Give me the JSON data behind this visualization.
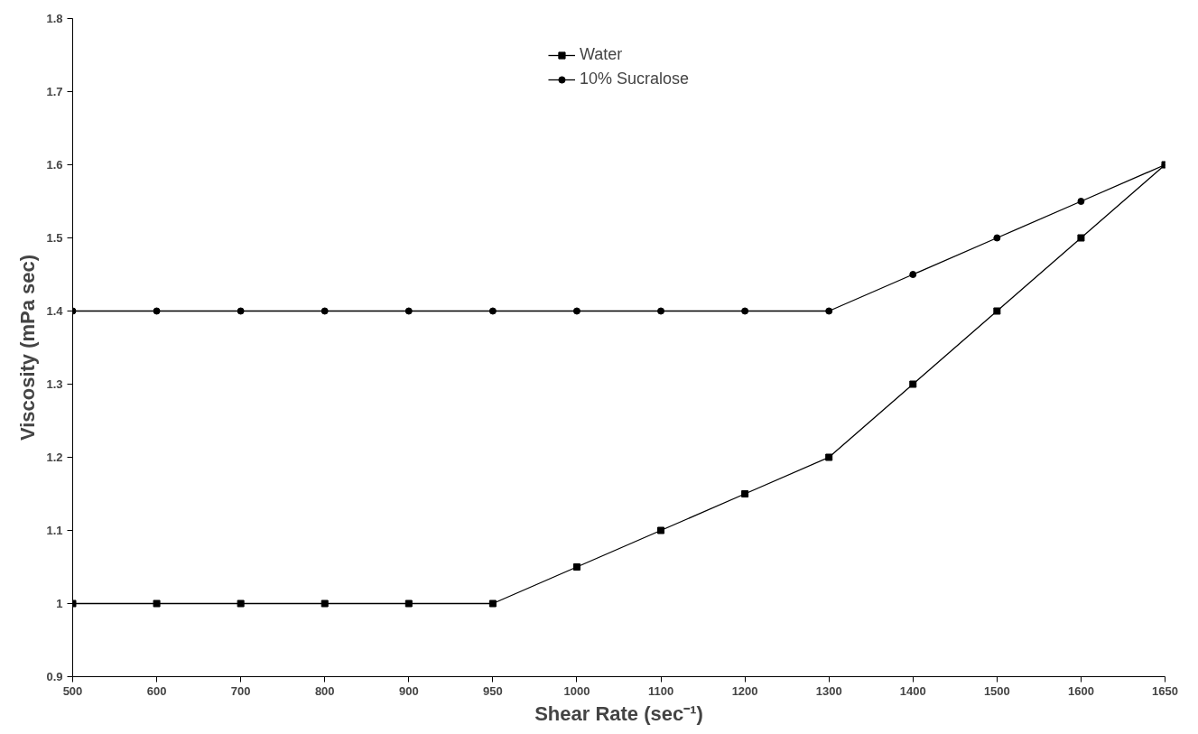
{
  "chart_data": {
    "type": "line",
    "xlabel": "Shear Rate (sec⁻¹)",
    "ylabel": "Viscosity (mPa sec)",
    "categories": [
      "500",
      "600",
      "700",
      "800",
      "900",
      "950",
      "1000",
      "1100",
      "1200",
      "1300",
      "1400",
      "1500",
      "1600",
      "1650"
    ],
    "series": [
      {
        "name": "Water",
        "color": "#000000",
        "marker": "square",
        "values": [
          1,
          1,
          1,
          1,
          1,
          1,
          1.05,
          1.1,
          1.15,
          1.2,
          1.3,
          1.4,
          1.5,
          1.6
        ]
      },
      {
        "name": "10% Sucralose",
        "color": "#000000",
        "marker": "circle",
        "values": [
          1.4,
          1.4,
          1.4,
          1.4,
          1.4,
          1.4,
          1.4,
          1.4,
          1.4,
          1.4,
          1.45,
          1.5,
          1.55,
          1.6
        ]
      }
    ],
    "ylim": [
      0.9,
      1.8
    ],
    "yticks": [
      0.9,
      {
        "value": 1,
        "label": "1"
      },
      1.1,
      1.2,
      1.3,
      1.4,
      1.5,
      1.6,
      1.7,
      1.8
    ],
    "grid": false,
    "legend": "top",
    "line_style": "solid"
  }
}
